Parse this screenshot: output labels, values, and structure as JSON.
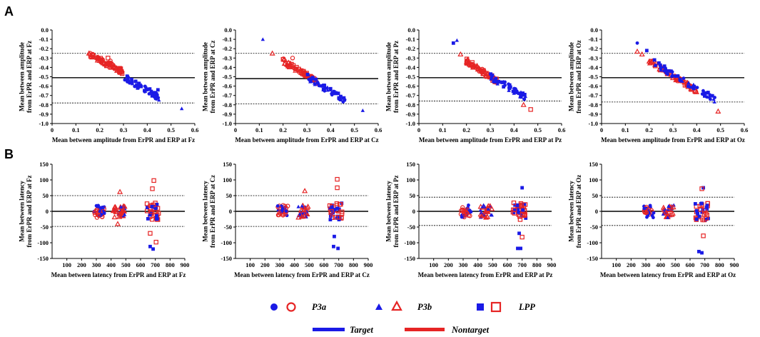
{
  "panel_labels": {
    "a": "A",
    "b": "B"
  },
  "colors": {
    "target": "#1a1ae6",
    "nontarget": "#e62424"
  },
  "legend": {
    "p3a": "P3a",
    "p3b": "P3b",
    "lpp": "LPP",
    "target": "Target",
    "nontarget": "Nontarget"
  },
  "chart_data": [
    {
      "type": "scatter",
      "id": "a-fz",
      "kind": "amplitude",
      "xlabel": "Mean between amplitude from ErPR and ERP at Fz",
      "ylabel": [
        "Mean between amplitude",
        "from ErPR and ERP at Fz"
      ],
      "xlim": [
        0,
        0.6
      ],
      "xticks": [
        0,
        0.1,
        0.2,
        0.3,
        0.4,
        0.5,
        0.6
      ],
      "ylim": [
        -1.0,
        0.0
      ],
      "yticks": [
        0,
        -0.1,
        -0.2,
        -0.3,
        -0.4,
        -0.5,
        -0.6,
        -0.7,
        -0.8,
        -0.9,
        -1.0
      ],
      "mean_line": -0.51,
      "loa_upper": -0.25,
      "loa_lower": -0.78,
      "nontarget_x": [
        0.16,
        0.3
      ],
      "nontarget_y": [
        -0.27,
        -0.45
      ],
      "target_x": [
        0.3,
        0.45
      ],
      "target_y": [
        -0.5,
        -0.72
      ],
      "outliers": [
        {
          "x": 0.155,
          "y": -0.25,
          "shape": "triangle",
          "group": "nontarget"
        },
        {
          "x": 0.235,
          "y": -0.3,
          "shape": "square",
          "group": "nontarget"
        },
        {
          "x": 0.245,
          "y": -0.33,
          "shape": "circle",
          "group": "nontarget"
        },
        {
          "x": 0.445,
          "y": -0.64,
          "shape": "square",
          "group": "target"
        },
        {
          "x": 0.545,
          "y": -0.84,
          "shape": "triangle",
          "group": "target"
        }
      ]
    },
    {
      "type": "scatter",
      "id": "a-cz",
      "kind": "amplitude",
      "xlabel": "Mean between amplitude from ErPR and ERP at Cz",
      "ylabel": [
        "Mean between amplitude",
        "from ErPR and ERP at Cz"
      ],
      "xlim": [
        0,
        0.6
      ],
      "xticks": [
        0,
        0.1,
        0.2,
        0.3,
        0.4,
        0.5,
        0.6
      ],
      "ylim": [
        -1.0,
        0.0
      ],
      "yticks": [
        0,
        -0.1,
        -0.2,
        -0.3,
        -0.4,
        -0.5,
        -0.6,
        -0.7,
        -0.8,
        -0.9,
        -1.0
      ],
      "mean_line": -0.52,
      "loa_upper": -0.25,
      "loa_lower": -0.79,
      "nontarget_x": [
        0.2,
        0.34
      ],
      "nontarget_y": [
        -0.33,
        -0.55
      ],
      "target_x": [
        0.3,
        0.46
      ],
      "target_y": [
        -0.5,
        -0.75
      ],
      "outliers": [
        {
          "x": 0.115,
          "y": -0.1,
          "shape": "triangle",
          "group": "target"
        },
        {
          "x": 0.155,
          "y": -0.25,
          "shape": "triangle",
          "group": "nontarget"
        },
        {
          "x": 0.24,
          "y": -0.3,
          "shape": "circle",
          "group": "nontarget"
        },
        {
          "x": 0.535,
          "y": -0.86,
          "shape": "triangle",
          "group": "target"
        }
      ]
    },
    {
      "type": "scatter",
      "id": "a-pz",
      "kind": "amplitude",
      "xlabel": "Mean between amplitude from ErPR and ERP at Pz",
      "ylabel": [
        "Mean between amplitude",
        "from ErPR and ERP at Pz"
      ],
      "xlim": [
        0,
        0.6
      ],
      "xticks": [
        0,
        0.1,
        0.2,
        0.3,
        0.4,
        0.5,
        0.6
      ],
      "ylim": [
        -1.0,
        0.0
      ],
      "yticks": [
        0,
        -0.1,
        -0.2,
        -0.3,
        -0.4,
        -0.5,
        -0.6,
        -0.7,
        -0.8,
        -0.9,
        -1.0
      ],
      "mean_line": -0.51,
      "loa_upper": -0.25,
      "loa_lower": -0.76,
      "nontarget_x": [
        0.2,
        0.33
      ],
      "nontarget_y": [
        -0.33,
        -0.55
      ],
      "target_x": [
        0.3,
        0.45
      ],
      "target_y": [
        -0.5,
        -0.72
      ],
      "outliers": [
        {
          "x": 0.145,
          "y": -0.14,
          "shape": "square",
          "group": "target"
        },
        {
          "x": 0.16,
          "y": -0.11,
          "shape": "triangle",
          "group": "target"
        },
        {
          "x": 0.175,
          "y": -0.26,
          "shape": "triangle",
          "group": "nontarget"
        },
        {
          "x": 0.445,
          "y": -0.69,
          "shape": "square",
          "group": "target"
        },
        {
          "x": 0.44,
          "y": -0.8,
          "shape": "triangle",
          "group": "nontarget"
        },
        {
          "x": 0.47,
          "y": -0.85,
          "shape": "square",
          "group": "nontarget"
        }
      ]
    },
    {
      "type": "scatter",
      "id": "a-oz",
      "kind": "amplitude",
      "xlabel": "Mean between amplitude from ErPR and ERP at Oz",
      "ylabel": [
        "Mean between amplitude",
        "from ErPR and ERP at Oz"
      ],
      "xlim": [
        0,
        0.6
      ],
      "xticks": [
        0,
        0.1,
        0.2,
        0.3,
        0.4,
        0.5,
        0.6
      ],
      "ylim": [
        -1.0,
        0.0
      ],
      "yticks": [
        0,
        -0.1,
        -0.2,
        -0.3,
        -0.4,
        -0.5,
        -0.6,
        -0.7,
        -0.8,
        -0.9,
        -1.0
      ],
      "mean_line": -0.51,
      "loa_upper": -0.25,
      "loa_lower": -0.77,
      "nontarget_x": [
        0.2,
        0.4
      ],
      "nontarget_y": [
        -0.33,
        -0.65
      ],
      "target_x": [
        0.22,
        0.48
      ],
      "target_y": [
        -0.35,
        -0.75
      ],
      "outliers": [
        {
          "x": 0.15,
          "y": -0.14,
          "shape": "circle",
          "group": "target"
        },
        {
          "x": 0.15,
          "y": -0.23,
          "shape": "triangle",
          "group": "nontarget"
        },
        {
          "x": 0.17,
          "y": -0.26,
          "shape": "triangle",
          "group": "nontarget"
        },
        {
          "x": 0.19,
          "y": -0.22,
          "shape": "square",
          "group": "target"
        },
        {
          "x": 0.49,
          "y": -0.87,
          "shape": "triangle",
          "group": "nontarget"
        }
      ]
    },
    {
      "type": "scatter",
      "id": "b-fz",
      "kind": "latency",
      "xlabel": "Mean between latency from ErPR and ERP at Fz",
      "ylabel": [
        "Mean between latency",
        "from ErPR and ERP at Fz"
      ],
      "xlim": [
        0,
        900
      ],
      "xticks": [
        100,
        200,
        300,
        400,
        500,
        600,
        700,
        800,
        900
      ],
      "ylim": [
        -150,
        150
      ],
      "yticks": [
        150,
        100,
        50,
        0,
        -50,
        -100,
        -150
      ],
      "mean_line": 0,
      "loa_upper": 50,
      "loa_lower": -48,
      "outliers": [
        {
          "x": 690,
          "y": 98,
          "shape": "square",
          "group": "nontarget"
        },
        {
          "x": 680,
          "y": 72,
          "shape": "square",
          "group": "nontarget"
        },
        {
          "x": 665,
          "y": -70,
          "shape": "square",
          "group": "nontarget"
        },
        {
          "x": 705,
          "y": -98,
          "shape": "square",
          "group": "nontarget"
        },
        {
          "x": 665,
          "y": -112,
          "shape": "square",
          "group": "target"
        },
        {
          "x": 685,
          "y": -120,
          "shape": "square",
          "group": "target"
        },
        {
          "x": 460,
          "y": 62,
          "shape": "triangle",
          "group": "nontarget"
        },
        {
          "x": 445,
          "y": -40,
          "shape": "triangle",
          "group": "nontarget"
        }
      ]
    },
    {
      "type": "scatter",
      "id": "b-cz",
      "kind": "latency",
      "xlabel": "Mean between latency from ErPR and ERP at Cz",
      "ylabel": [
        "Mean between latency",
        "from ErPR and ERP at Cz"
      ],
      "xlim": [
        0,
        900
      ],
      "xticks": [
        100,
        200,
        300,
        400,
        500,
        600,
        700,
        800,
        900
      ],
      "ylim": [
        -150,
        150
      ],
      "yticks": [
        150,
        100,
        50,
        0,
        -50,
        -100,
        -150
      ],
      "mean_line": 0,
      "loa_upper": 50,
      "loa_lower": -48,
      "outliers": [
        {
          "x": 690,
          "y": 102,
          "shape": "square",
          "group": "nontarget"
        },
        {
          "x": 690,
          "y": 75,
          "shape": "square",
          "group": "nontarget"
        },
        {
          "x": 470,
          "y": 65,
          "shape": "triangle",
          "group": "nontarget"
        },
        {
          "x": 670,
          "y": -80,
          "shape": "square",
          "group": "target"
        },
        {
          "x": 665,
          "y": -112,
          "shape": "square",
          "group": "target"
        },
        {
          "x": 695,
          "y": -118,
          "shape": "square",
          "group": "target"
        }
      ]
    },
    {
      "type": "scatter",
      "id": "b-pz",
      "kind": "latency",
      "xlabel": "Mean between latency from ErPR and ERP at Pz",
      "ylabel": [
        "Mean between latency",
        "from ErPR and ERP at Pz"
      ],
      "xlim": [
        0,
        900
      ],
      "xticks": [
        100,
        200,
        300,
        400,
        500,
        600,
        700,
        800,
        900
      ],
      "ylim": [
        -150,
        150
      ],
      "yticks": [
        150,
        100,
        50,
        0,
        -50,
        -100,
        -150
      ],
      "mean_line": 0,
      "loa_upper": 45,
      "loa_lower": -45,
      "outliers": [
        {
          "x": 700,
          "y": 75,
          "shape": "square",
          "group": "target"
        },
        {
          "x": 700,
          "y": -82,
          "shape": "square",
          "group": "nontarget"
        },
        {
          "x": 680,
          "y": -70,
          "shape": "square",
          "group": "target"
        },
        {
          "x": 670,
          "y": -118,
          "shape": "square",
          "group": "target"
        },
        {
          "x": 690,
          "y": -118,
          "shape": "square",
          "group": "target"
        }
      ]
    },
    {
      "type": "scatter",
      "id": "b-oz",
      "kind": "latency",
      "xlabel": "Mean between latency from ErPR and ERP at Oz",
      "ylabel": [
        "Mean between latency",
        "from ErPR and ERP at Oz"
      ],
      "xlim": [
        0,
        900
      ],
      "xticks": [
        100,
        200,
        300,
        400,
        500,
        600,
        700,
        800,
        900
      ],
      "ylim": [
        -150,
        150
      ],
      "yticks": [
        150,
        100,
        50,
        0,
        -50,
        -100,
        -150
      ],
      "mean_line": 0,
      "loa_upper": 45,
      "loa_lower": -45,
      "outliers": [
        {
          "x": 690,
          "y": 75,
          "shape": "square",
          "group": "target"
        },
        {
          "x": 680,
          "y": 72,
          "shape": "square",
          "group": "nontarget"
        },
        {
          "x": 690,
          "y": -78,
          "shape": "square",
          "group": "nontarget"
        },
        {
          "x": 660,
          "y": -128,
          "shape": "square",
          "group": "target"
        },
        {
          "x": 680,
          "y": -132,
          "shape": "square",
          "group": "target"
        }
      ]
    }
  ]
}
